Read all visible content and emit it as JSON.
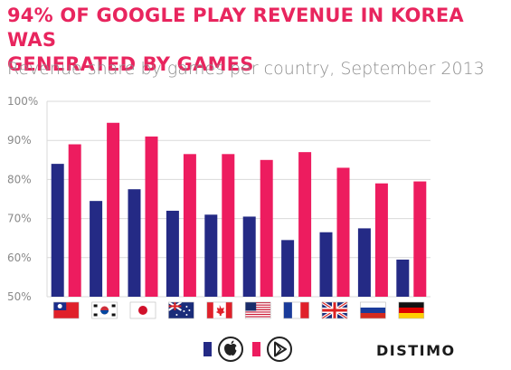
{
  "header": {
    "title_line1": "94% OF GOOGLE PLAY REVENUE IN KOREA WAS",
    "title_line2": "GENERATED BY GAMES",
    "subtitle": "Revenue share by games per country, September 2013"
  },
  "brand": "DISTIMO",
  "colors": {
    "apple": "#242a85",
    "google": "#ed1c5f",
    "accent": "#e8255e",
    "grid": "#d9d9d9"
  },
  "legend": [
    {
      "color": "#242a85",
      "icon": "apple-logo-icon"
    },
    {
      "color": "#ed1c5f",
      "icon": "google-play-logo-icon"
    }
  ],
  "chart_data": {
    "type": "bar",
    "categories": [
      "Taiwan",
      "South Korea",
      "Japan",
      "Australia",
      "Canada",
      "United States",
      "France",
      "United Kingdom",
      "Russia",
      "Germany"
    ],
    "category_icons": [
      "flag-taiwan-icon",
      "flag-south-korea-icon",
      "flag-japan-icon",
      "flag-australia-icon",
      "flag-canada-icon",
      "flag-usa-icon",
      "flag-france-icon",
      "flag-uk-icon",
      "flag-russia-icon",
      "flag-germany-icon"
    ],
    "series": [
      {
        "values": [
          84,
          74.5,
          77.5,
          72,
          71,
          70.5,
          64.5,
          66.5,
          67.5,
          59.5
        ]
      },
      {
        "values": [
          89,
          94.5,
          91,
          86.5,
          86.5,
          85,
          87,
          83,
          79,
          79.5
        ]
      }
    ],
    "ylim": [
      50,
      100
    ],
    "yticks": [
      "50%",
      "60%",
      "70%",
      "80%",
      "90%",
      "100%"
    ],
    "grid": true
  }
}
